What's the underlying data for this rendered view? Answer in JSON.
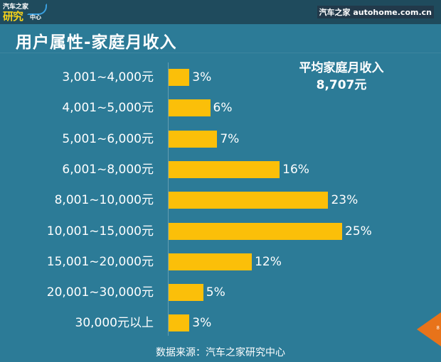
{
  "header": {
    "logo_line1": "汽车之家",
    "logo_line2": "研究",
    "logo_line3": "中心",
    "site": "汽车之家 autohome.com.cn"
  },
  "title": "用户属性-家庭月收入",
  "summary": {
    "label": "平均家庭月收入",
    "value": "8,707元"
  },
  "footer": {
    "source": "数据来源：汽车之家研究中心",
    "page_number": "8"
  },
  "colors": {
    "background": "#2c7b97",
    "bar": "#fbbf09",
    "page_marker": "#e8731a"
  },
  "chart_data": {
    "type": "bar",
    "orientation": "horizontal",
    "title": "用户属性-家庭月收入",
    "categories": [
      "3,001~4,000元",
      "4,001~5,000元",
      "5,001~6,000元",
      "6,001~8,000元",
      "8,001~10,000元",
      "10,001~15,000元",
      "15,001~20,000元",
      "20,001~30,000元",
      "30,000元以上"
    ],
    "values": [
      3,
      6,
      7,
      16,
      23,
      25,
      12,
      5,
      3
    ],
    "value_labels": [
      "3%",
      "6%",
      "7%",
      "16%",
      "23%",
      "25%",
      "12%",
      "5%",
      "3%"
    ],
    "unit": "%",
    "xlabel": "",
    "ylabel": "",
    "grid": false,
    "legend": null,
    "annotation": "平均家庭月收入 8,707元"
  }
}
